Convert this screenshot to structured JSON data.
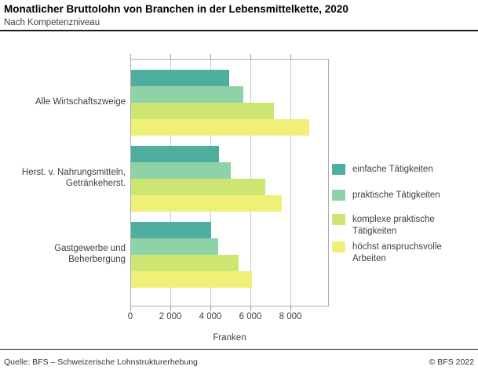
{
  "header": {
    "title": "Monatlicher Bruttolohn von Branchen in der Lebensmittelkette, 2020",
    "subtitle": "Nach Kompetenzniveau"
  },
  "footer": {
    "source": "Quelle: BFS – Schweizerische Lohnstrukturerhebung",
    "copyright": "© BFS 2022"
  },
  "chart_data": {
    "type": "bar",
    "orientation": "horizontal",
    "title": "Monatlicher Bruttolohn von Branchen in der Lebensmittelkette, 2020",
    "subtitle": "Nach Kompetenzniveau",
    "categories": [
      "Alle Wirtschaftszweige",
      "Herst. v. Nahrungsmitteln, Getränkeherst.",
      "Gastgewerbe und Beherbergung"
    ],
    "category_label_lines": [
      [
        "Alle Wirtschaftszweige"
      ],
      [
        "Herst. v. Nahrungsmitteln,",
        "Getränkeherst."
      ],
      [
        "Gastgewerbe und",
        "Beherbergung"
      ]
    ],
    "series": [
      {
        "name": "einfache Tätigkeiten",
        "label_lines": [
          "einfache Tätigkeiten"
        ],
        "color": "#4eaea0",
        "values": [
          4900,
          4400,
          4000
        ]
      },
      {
        "name": "praktische Tätigkeiten",
        "label_lines": [
          "praktische Tätigkeiten"
        ],
        "color": "#90d2a8",
        "values": [
          5600,
          5000,
          4370
        ]
      },
      {
        "name": "komplexe praktische Tätigkeiten",
        "label_lines": [
          "komplexe praktische",
          "Tätigkeiten"
        ],
        "color": "#cde673",
        "values": [
          7150,
          6700,
          5400
        ]
      },
      {
        "name": "höchst anspruchsvolle Arbeiten",
        "label_lines": [
          "höchst anspruchsvolle",
          "Arbeiten"
        ],
        "color": "#eff077",
        "values": [
          8900,
          7550,
          6050
        ]
      }
    ],
    "xlabel": "Franken",
    "ylabel": "",
    "xlim": [
      0,
      9900
    ],
    "xticks": [
      0,
      2000,
      4000,
      6000,
      8000
    ],
    "xtick_labels": [
      "0",
      "2 000",
      "4 000",
      "6 000",
      "8 000"
    ],
    "grid": true,
    "legend_position": "right",
    "colors": {
      "grid": "#c9c9c9",
      "plot_border": "#adadad",
      "tick": "#9a9a9a",
      "rule": "#1c1c1c"
    }
  }
}
